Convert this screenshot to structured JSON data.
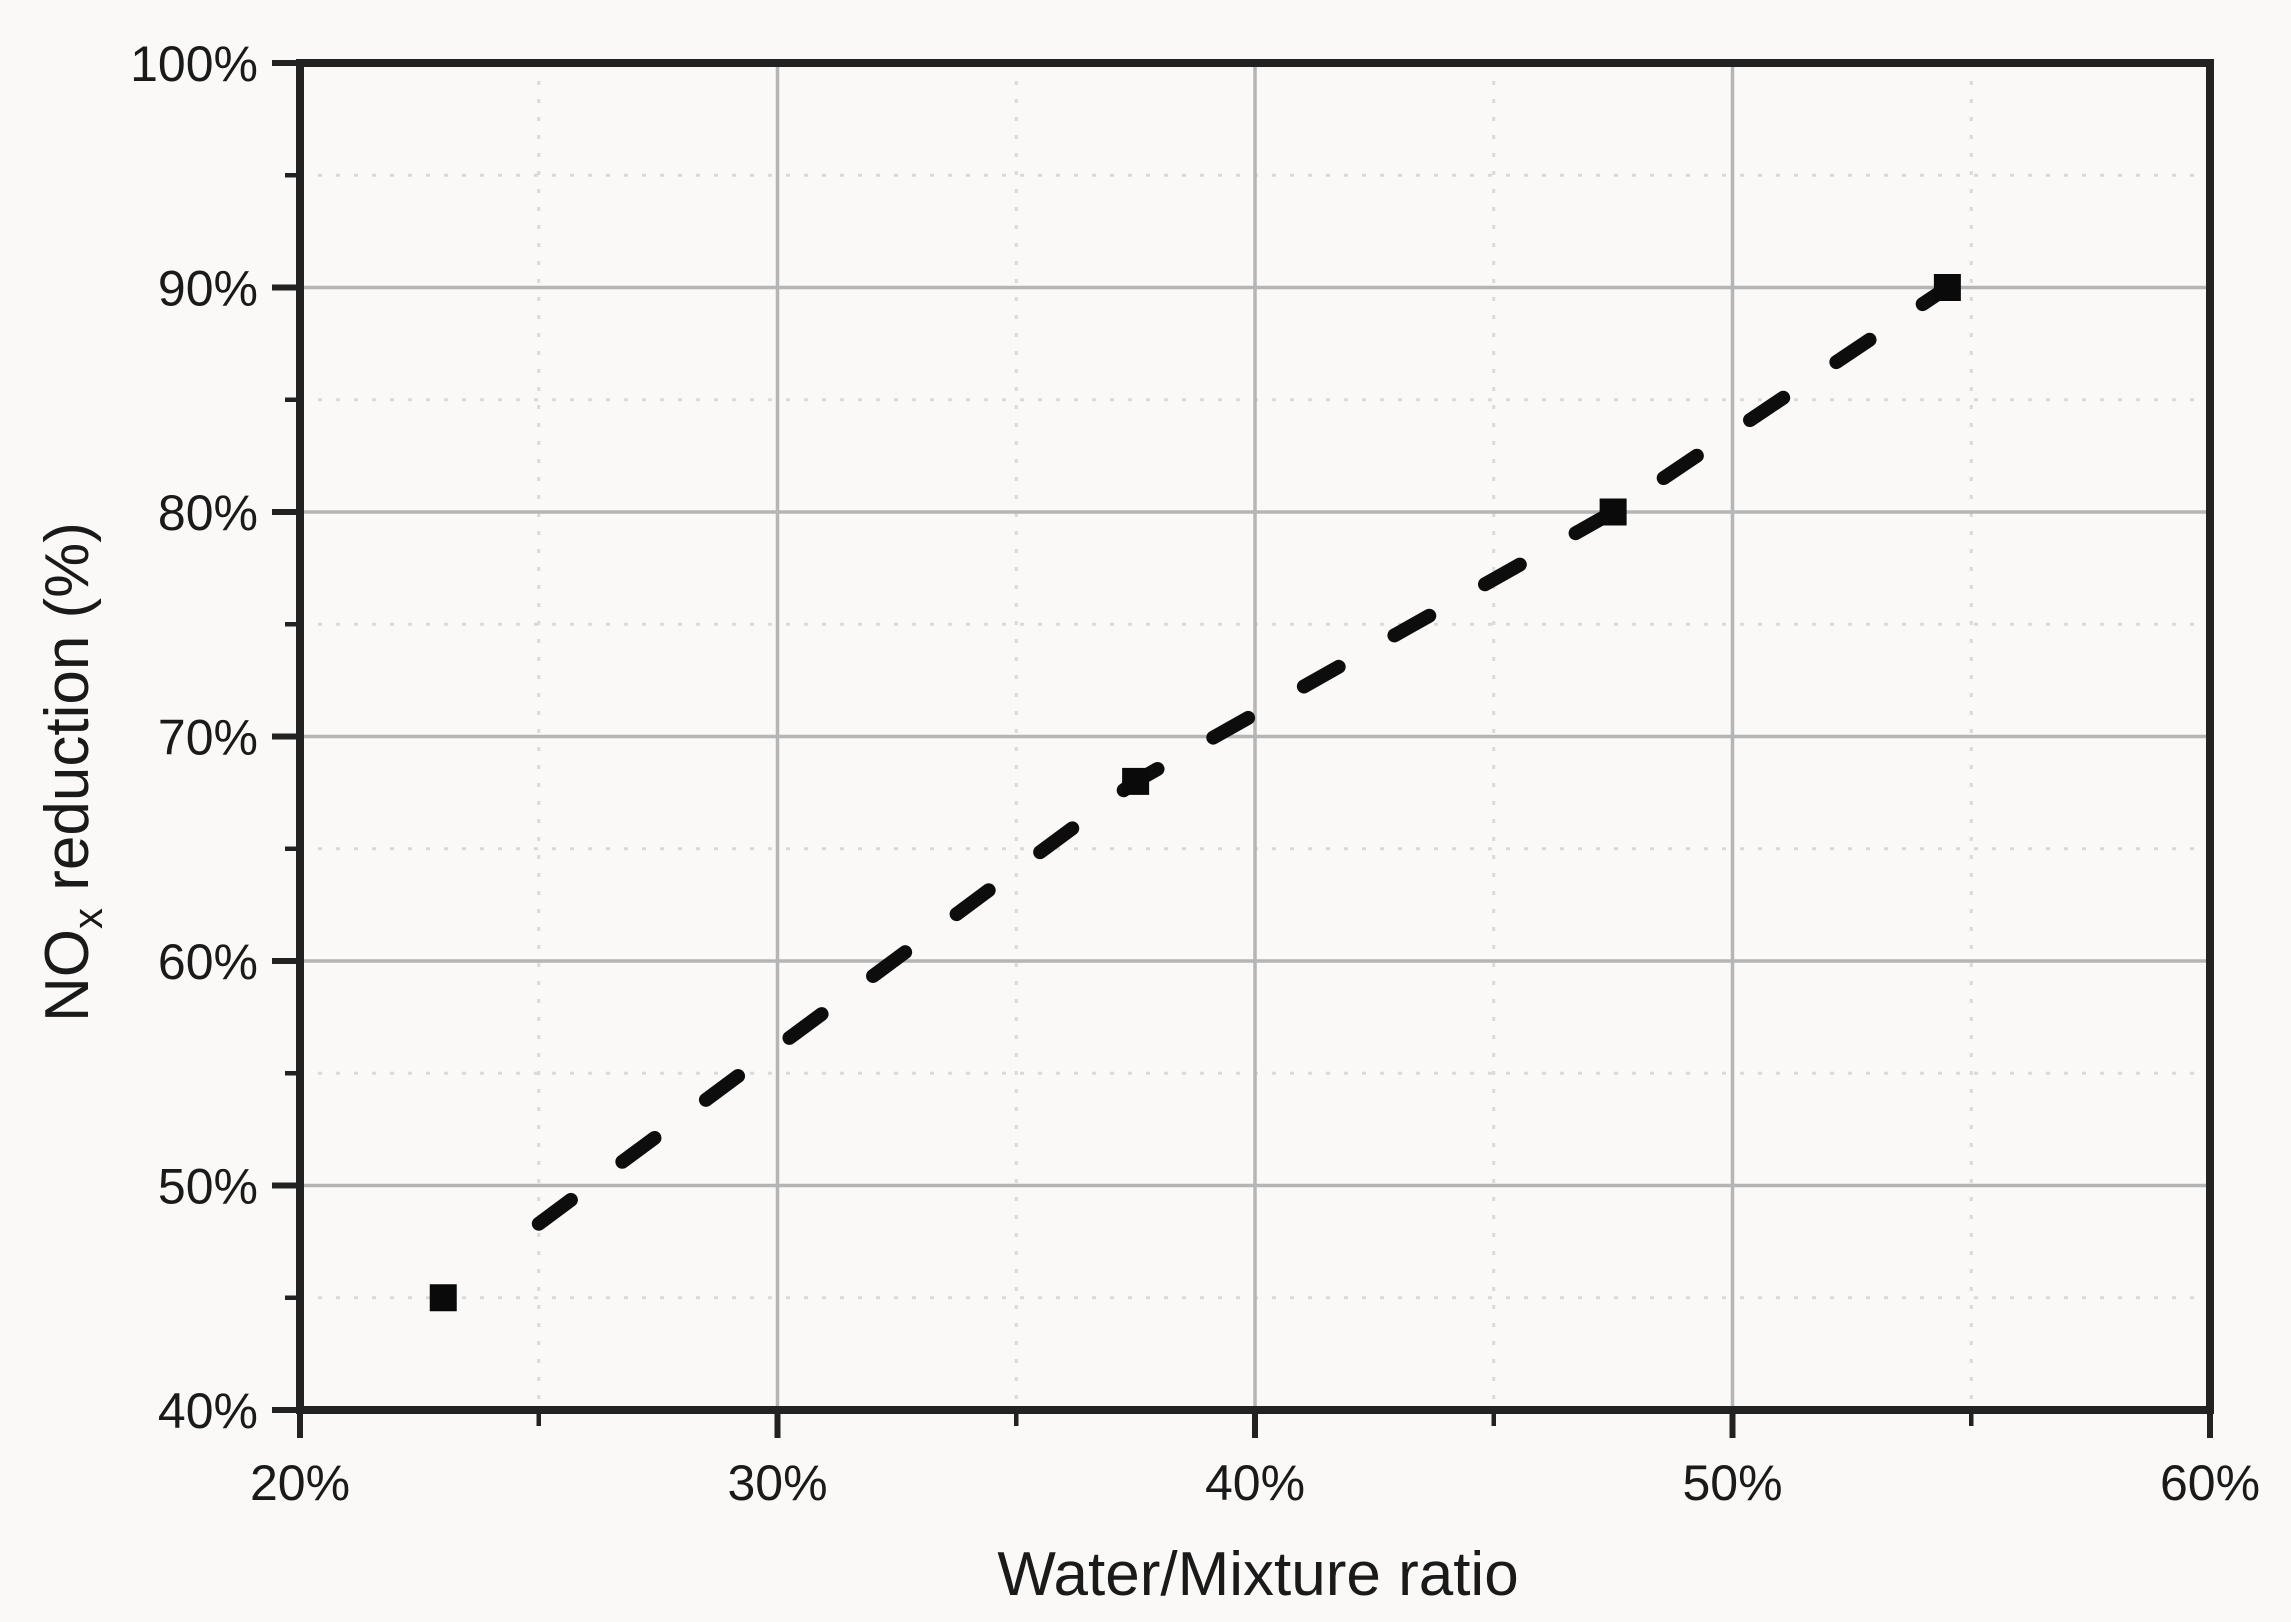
{
  "figure": {
    "background": "#faf9f8",
    "axis_color": "#222222",
    "text_color": "#1a1a1a",
    "grid_major_color": "#b5b5b5",
    "grid_minor_color": "#d9d9d9",
    "marker_color": "#0a0a0a",
    "trend_color": "#0d0d0d"
  },
  "chart_data": {
    "type": "scatter",
    "title": "",
    "xlabel": "Water/Mixture ratio",
    "ylabel": "NOx reduction (%)",
    "ylabel_parts": {
      "prefix": "NO",
      "subscript": "x",
      "suffix": " reduction (%)"
    },
    "xlim": [
      20,
      60
    ],
    "ylim": [
      40,
      100
    ],
    "x_major_ticks": [
      20,
      30,
      40,
      50,
      60
    ],
    "x_tick_labels": [
      "20%",
      "30%",
      "40%",
      "50%",
      "60%"
    ],
    "x_minor_ticks": [
      25,
      35,
      45,
      55
    ],
    "y_major_ticks": [
      40,
      50,
      60,
      70,
      80,
      90,
      100
    ],
    "y_tick_labels": [
      "40%",
      "50%",
      "60%",
      "70%",
      "80%",
      "90%",
      "100%"
    ],
    "y_minor_ticks": [
      45,
      55,
      65,
      75,
      85,
      95
    ],
    "grid": {
      "major": "solid",
      "minor": "dotted"
    },
    "legend": null,
    "series": [
      {
        "name": "NOx reduction",
        "marker": "filled-square",
        "points_x_percent": [
          23,
          37.5,
          47.5,
          54.5
        ],
        "points_y_percent": [
          45,
          68,
          80,
          90
        ]
      }
    ],
    "trend_line": {
      "style": "dashed",
      "points_x_percent": [
        25,
        37.5,
        47.5,
        54.5
      ],
      "points_y_percent": [
        48.3,
        68,
        80,
        90
      ]
    }
  }
}
